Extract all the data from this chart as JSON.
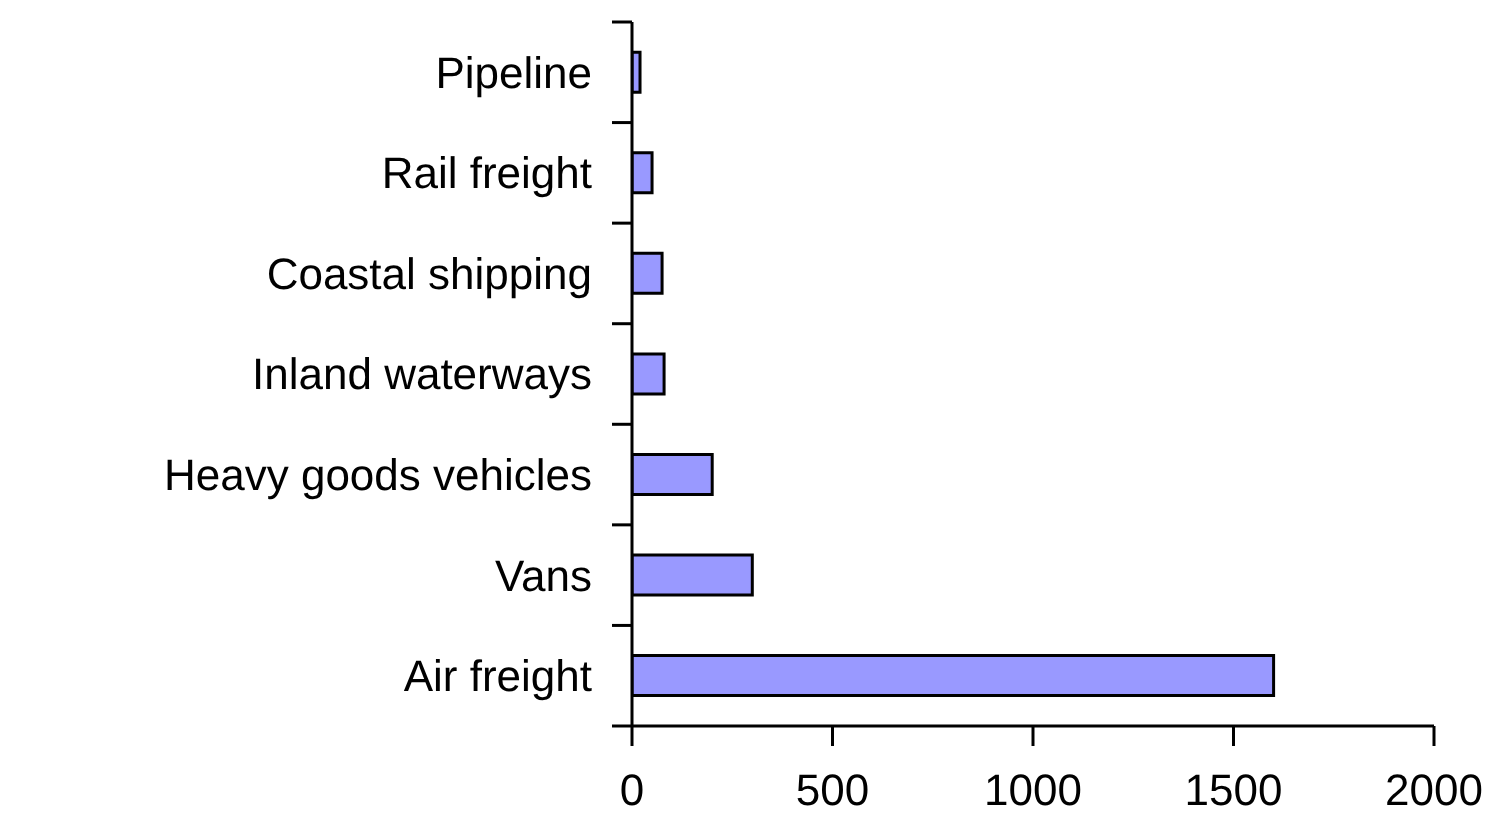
{
  "chart_data": {
    "type": "bar",
    "orientation": "horizontal",
    "categories": [
      "Pipeline",
      "Rail freight",
      "Coastal shipping",
      "Inland waterways",
      "Heavy goods vehicles",
      "Vans",
      "Air freight"
    ],
    "values": [
      20,
      50,
      75,
      80,
      200,
      300,
      1600
    ],
    "color": "#9999ff",
    "xlim": [
      0,
      2000
    ],
    "xticks": [
      0,
      500,
      1000,
      1500,
      2000
    ],
    "grid": false,
    "legend": false
  }
}
